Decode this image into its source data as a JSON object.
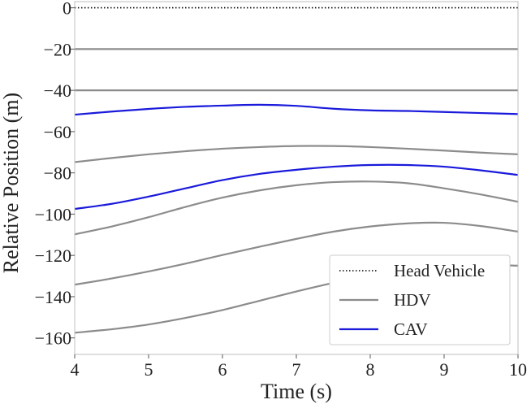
{
  "chart_data": {
    "type": "line",
    "title": "",
    "xlabel": "Time (s)",
    "ylabel": "Relative Position (m)",
    "xlim": [
      4,
      10
    ],
    "ylim": [
      -168,
      3
    ],
    "xticks": [
      4,
      5,
      6,
      7,
      8,
      9,
      10
    ],
    "yticks": [
      0,
      -20,
      -40,
      -60,
      -80,
      -100,
      -120,
      -140,
      -160
    ],
    "ytick_labels": [
      "0",
      "−20",
      "−40",
      "−60",
      "−80",
      "−100",
      "−120",
      "−140",
      "−160"
    ],
    "legend": {
      "placement": "bottom-right",
      "entries": [
        {
          "label": "Head Vehicle",
          "style": "dotted",
          "color": "#000000"
        },
        {
          "label": "HDV",
          "style": "solid",
          "color": "#8c8c8c"
        },
        {
          "label": "CAV",
          "style": "solid",
          "color": "#1a1adb"
        }
      ]
    },
    "x": [
      4,
      4.5,
      5,
      5.5,
      6,
      6.5,
      7,
      7.5,
      8,
      8.5,
      9,
      9.5,
      10
    ],
    "series": [
      {
        "name": "Head Vehicle",
        "kind": "head",
        "values": [
          0,
          0,
          0,
          0,
          0,
          0,
          0,
          0,
          0,
          0,
          0,
          0,
          0
        ]
      },
      {
        "name": "HDV 1",
        "kind": "hdv",
        "values": [
          -20,
          -20,
          -20,
          -20,
          -20,
          -20,
          -20,
          -20,
          -20,
          -20,
          -20,
          -20,
          -20
        ]
      },
      {
        "name": "HDV 2",
        "kind": "hdv",
        "values": [
          -40,
          -40,
          -40,
          -40,
          -40,
          -40,
          -40,
          -40,
          -40,
          -40,
          -40,
          -40,
          -40
        ]
      },
      {
        "name": "CAV 1",
        "kind": "cav",
        "values": [
          -51.8,
          -50.3,
          -49.0,
          -48.0,
          -47.4,
          -47.0,
          -47.5,
          -48.9,
          -49.7,
          -50.0,
          -50.5,
          -51.0,
          -51.5
        ]
      },
      {
        "name": "HDV 3",
        "kind": "hdv",
        "values": [
          -74.8,
          -72.8,
          -71.0,
          -69.5,
          -68.3,
          -67.5,
          -67.0,
          -67.0,
          -67.5,
          -68.3,
          -69.2,
          -70.2,
          -71.0
        ]
      },
      {
        "name": "CAV 2",
        "kind": "cav",
        "values": [
          -97.5,
          -95.0,
          -91.5,
          -87.5,
          -83.5,
          -80.5,
          -78.5,
          -77.0,
          -76.2,
          -76.2,
          -77.0,
          -78.8,
          -81.0
        ]
      },
      {
        "name": "HDV 4",
        "kind": "hdv",
        "values": [
          -109.8,
          -106.0,
          -101.5,
          -96.5,
          -92.0,
          -88.5,
          -86.0,
          -84.5,
          -84.2,
          -85.0,
          -87.5,
          -90.5,
          -94.0
        ]
      },
      {
        "name": "HDV 5",
        "kind": "hdv",
        "values": [
          -134.2,
          -131.2,
          -127.8,
          -124.0,
          -119.8,
          -115.8,
          -112.0,
          -108.5,
          -106.0,
          -104.5,
          -104.2,
          -105.8,
          -108.5
        ]
      },
      {
        "name": "HDV 6",
        "kind": "hdv",
        "values": [
          -157.5,
          -155.8,
          -153.5,
          -150.3,
          -146.5,
          -142.0,
          -137.5,
          -133.3,
          -129.5,
          -126.5,
          -124.8,
          -124.5,
          -125.0
        ]
      }
    ]
  }
}
